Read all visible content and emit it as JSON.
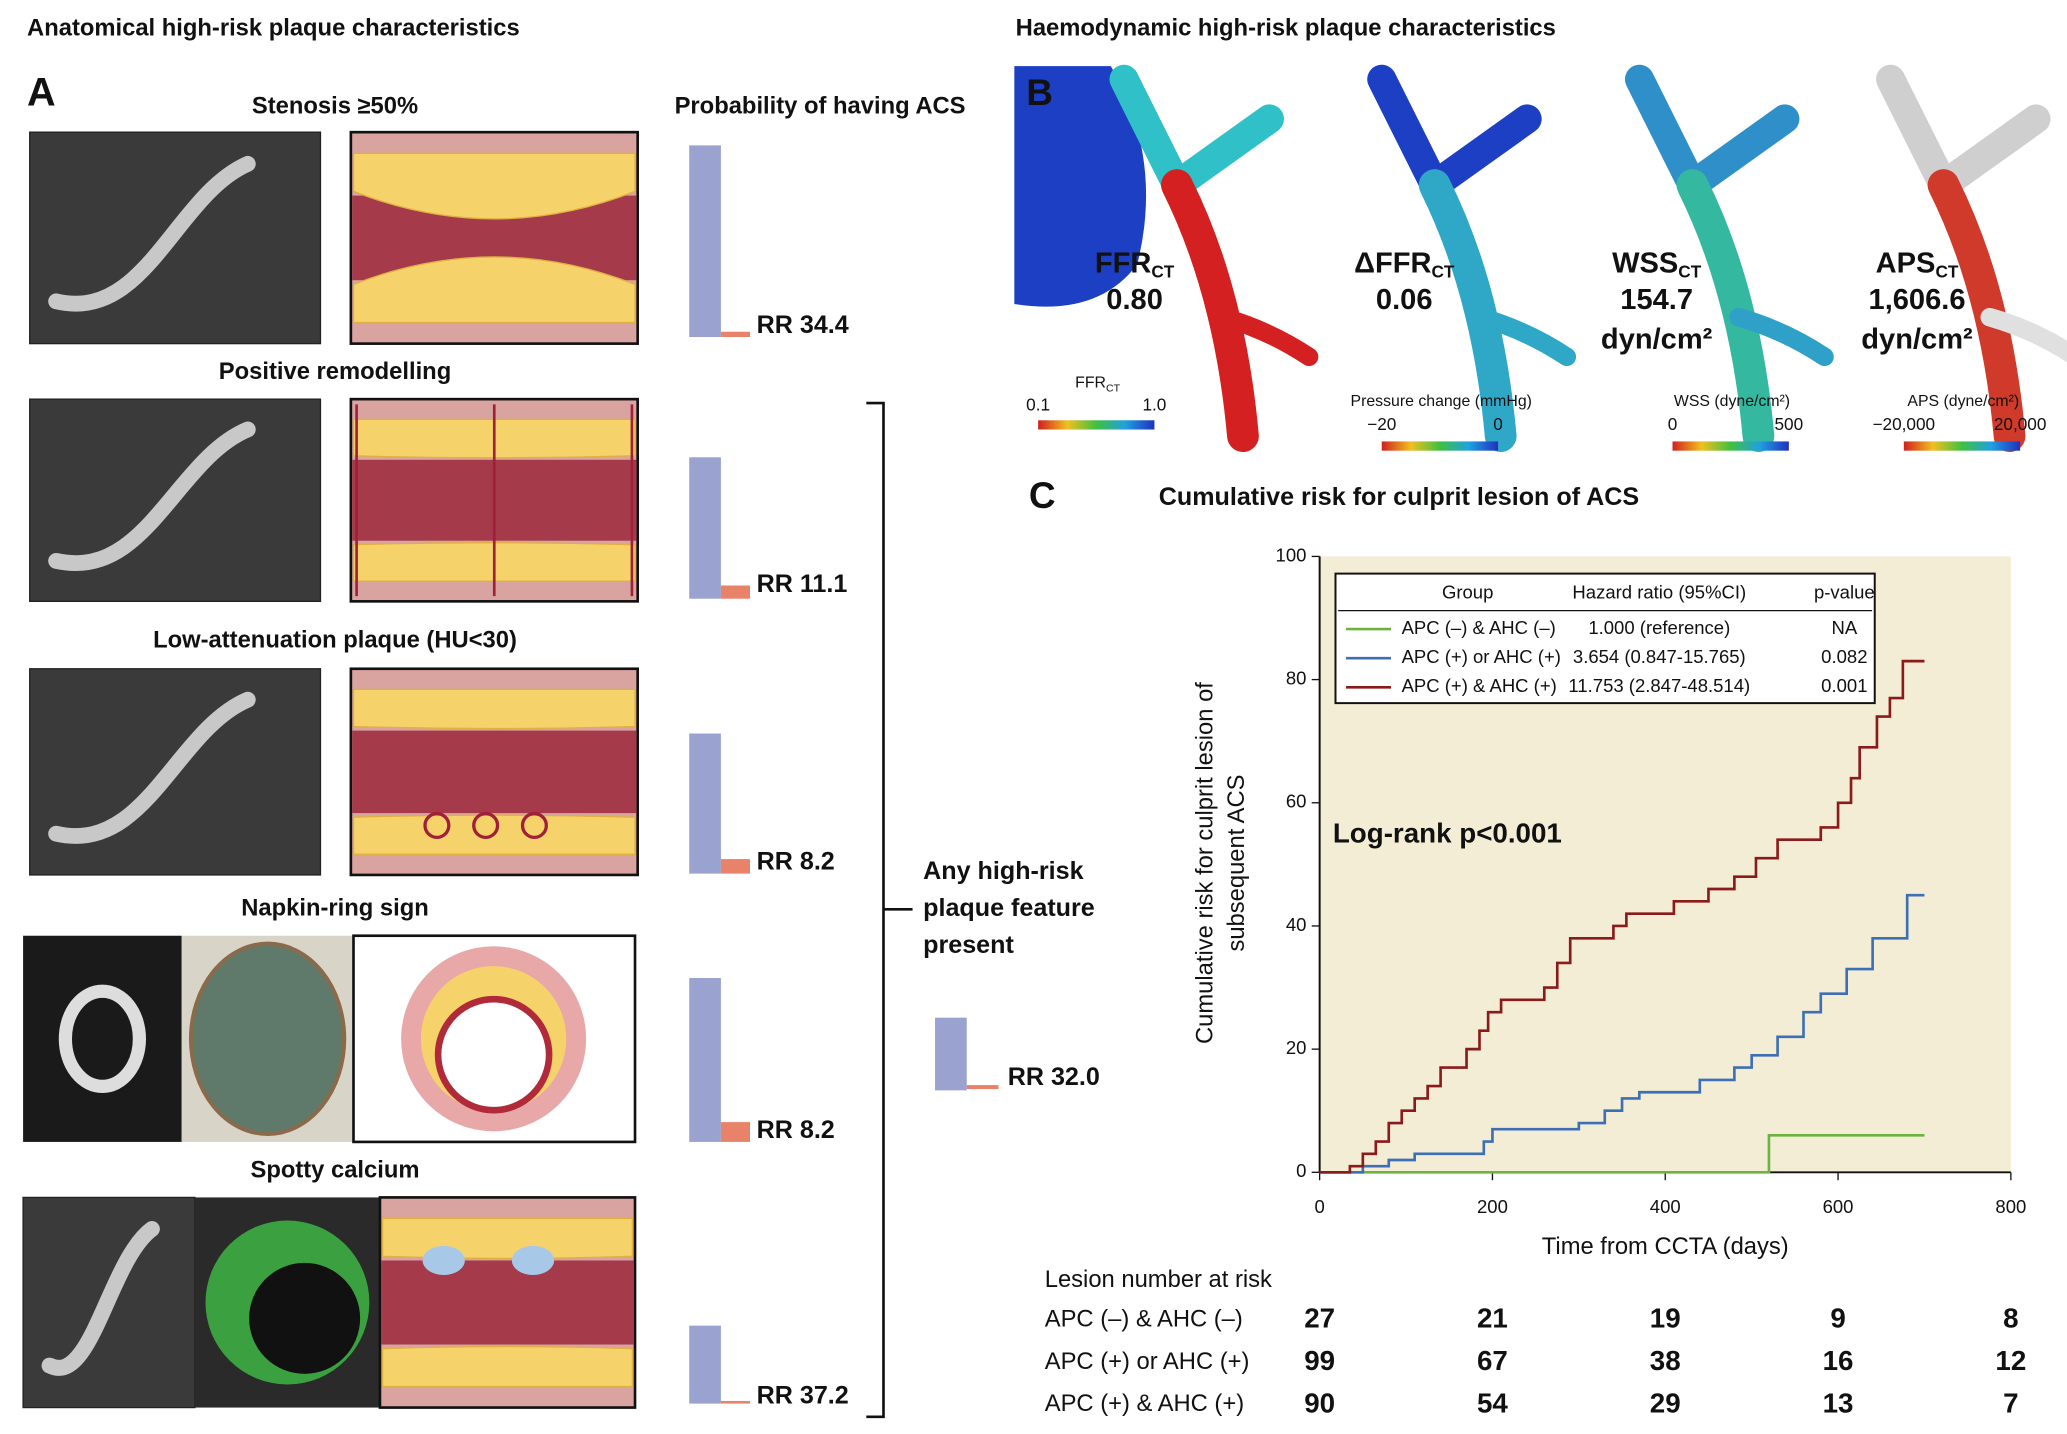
{
  "panel_a": {
    "title": "Anatomical high-risk plaque characteristics",
    "label": "A",
    "probability_heading": "Probability of having ACS",
    "features": [
      {
        "name": "Stenosis ≥50%",
        "rr": "RR 34.4"
      },
      {
        "name": "Positive remodelling",
        "rr": "RR 11.1"
      },
      {
        "name": "Low-attenuation plaque (HU<30)",
        "rr": "RR 8.2"
      },
      {
        "name": "Napkin-ring sign",
        "rr": "RR 8.2"
      },
      {
        "name": "Spotty calcium",
        "rr": "RR 37.2"
      }
    ],
    "any_feature": {
      "lines": [
        "Any high-risk",
        "plaque feature",
        "present"
      ],
      "rr": "RR 32.0"
    }
  },
  "panel_b": {
    "title": "Haemodynamic high-risk plaque characteristics",
    "label": "B",
    "maps": [
      {
        "name": "FFR",
        "sub": "CT",
        "value": "0.80",
        "scale_title": "FFR",
        "scale_sub": "CT",
        "scale_min": "0.1",
        "scale_max": "1.0"
      },
      {
        "name": "ΔFFR",
        "sub": "CT",
        "value": "0.06",
        "scale_title": "Pressure change (mmHg)",
        "scale_min": "−20",
        "scale_max": "0"
      },
      {
        "name": "WSS",
        "sub": "CT",
        "value": "154.7",
        "unit": "dyn/cm²",
        "scale_title": "WSS (dyne/cm²)",
        "scale_min": "0",
        "scale_max": "500"
      },
      {
        "name": "APS",
        "sub": "CT",
        "value": "1,606.6",
        "unit": "dyn/cm²",
        "scale_title": "APS (dyne/cm²)",
        "scale_min": "−20,000",
        "scale_max": "20,000"
      }
    ]
  },
  "chart_data": {
    "type": "line",
    "label": "C",
    "title": "Cumulative risk for culprit lesion of ACS",
    "xlabel": "Time from CCTA (days)",
    "ylabel": [
      "Cumulative risk for culprit lesion of",
      "subsequent ACS"
    ],
    "xlim": [
      0,
      800
    ],
    "xticks": [
      0,
      200,
      400,
      600,
      800
    ],
    "ylim": [
      0,
      100
    ],
    "yticks": [
      0,
      20,
      40,
      60,
      80,
      100
    ],
    "annotation": "Log-rank p<0.001",
    "legend_headers": [
      "Group",
      "Hazard ratio (95%CI)",
      "p-value"
    ],
    "series": [
      {
        "name": "APC (–) & AHC (–)",
        "color": "#6db33f",
        "hazard_ratio": "1.000 (reference)",
        "p_value": "NA",
        "x": [
          0,
          520,
          520,
          700
        ],
        "values": [
          0,
          0,
          6,
          6
        ]
      },
      {
        "name": "APC (+) or AHC (+)",
        "color": "#3d6fb6",
        "hazard_ratio": "3.654 (0.847-15.765)",
        "p_value": "0.082",
        "x": [
          0,
          50,
          50,
          80,
          80,
          110,
          110,
          190,
          190,
          200,
          200,
          300,
          300,
          330,
          330,
          350,
          350,
          370,
          370,
          440,
          440,
          480,
          480,
          500,
          500,
          530,
          530,
          560,
          560,
          580,
          580,
          610,
          610,
          640,
          640,
          680,
          680,
          700
        ],
        "values": [
          0,
          0,
          1,
          1,
          2,
          2,
          3,
          3,
          5,
          5,
          7,
          7,
          8,
          8,
          10,
          10,
          12,
          12,
          13,
          13,
          15,
          15,
          17,
          17,
          19,
          19,
          22,
          22,
          26,
          26,
          29,
          29,
          33,
          33,
          38,
          38,
          45,
          45
        ]
      },
      {
        "name": "APC (+) & AHC (+)",
        "color": "#8b1a1a",
        "hazard_ratio": "11.753 (2.847-48.514)",
        "p_value": "0.001",
        "x": [
          0,
          35,
          35,
          50,
          50,
          65,
          65,
          80,
          80,
          95,
          95,
          110,
          110,
          125,
          125,
          140,
          140,
          170,
          170,
          185,
          185,
          195,
          195,
          210,
          210,
          260,
          260,
          275,
          275,
          290,
          290,
          340,
          340,
          355,
          355,
          410,
          410,
          450,
          450,
          480,
          480,
          505,
          505,
          530,
          530,
          580,
          580,
          600,
          600,
          615,
          615,
          625,
          625,
          645,
          645,
          660,
          660,
          675,
          675,
          700
        ],
        "values": [
          0,
          0,
          1,
          1,
          3,
          3,
          5,
          5,
          8,
          8,
          10,
          10,
          12,
          12,
          14,
          14,
          17,
          17,
          20,
          20,
          23,
          23,
          26,
          26,
          28,
          28,
          30,
          30,
          34,
          34,
          38,
          38,
          40,
          40,
          42,
          42,
          44,
          44,
          46,
          46,
          48,
          48,
          51,
          51,
          54,
          54,
          56,
          56,
          60,
          60,
          64,
          64,
          69,
          69,
          74,
          74,
          77,
          77,
          83,
          83
        ]
      }
    ],
    "risk_table": {
      "title": "Lesion number at risk",
      "counts": [
        [
          27,
          21,
          19,
          9,
          8
        ],
        [
          99,
          67,
          38,
          16,
          12
        ],
        [
          90,
          54,
          29,
          13,
          7
        ]
      ]
    }
  }
}
